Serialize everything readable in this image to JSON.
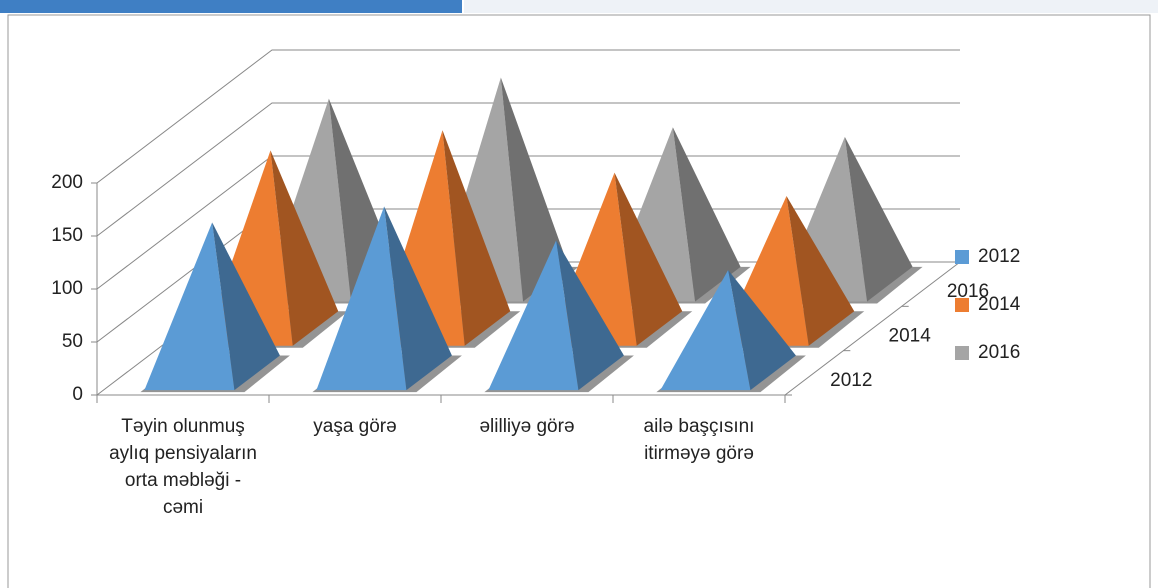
{
  "chart_data": {
    "type": "pyramid3d",
    "categories": [
      "Təyin olunmuş aylıq pensiyaların orta məbləği - cəmi",
      "yaşa görə",
      "əlilliyə görə",
      "ailə başçısını itirməyə görə"
    ],
    "series": [
      {
        "name": "2012",
        "color": "#5b9bd5",
        "values": [
          142,
          157,
          125,
          97
        ]
      },
      {
        "name": "2014",
        "color": "#ed7d31",
        "values": [
          168,
          187,
          147,
          125
        ]
      },
      {
        "name": "2016",
        "color": "#a5a5a5",
        "values": [
          175,
          195,
          148,
          139
        ]
      }
    ],
    "ylim": [
      0,
      200
    ],
    "yticks": [
      0,
      50,
      100,
      150,
      200
    ],
    "grid": true,
    "legend": "right"
  }
}
